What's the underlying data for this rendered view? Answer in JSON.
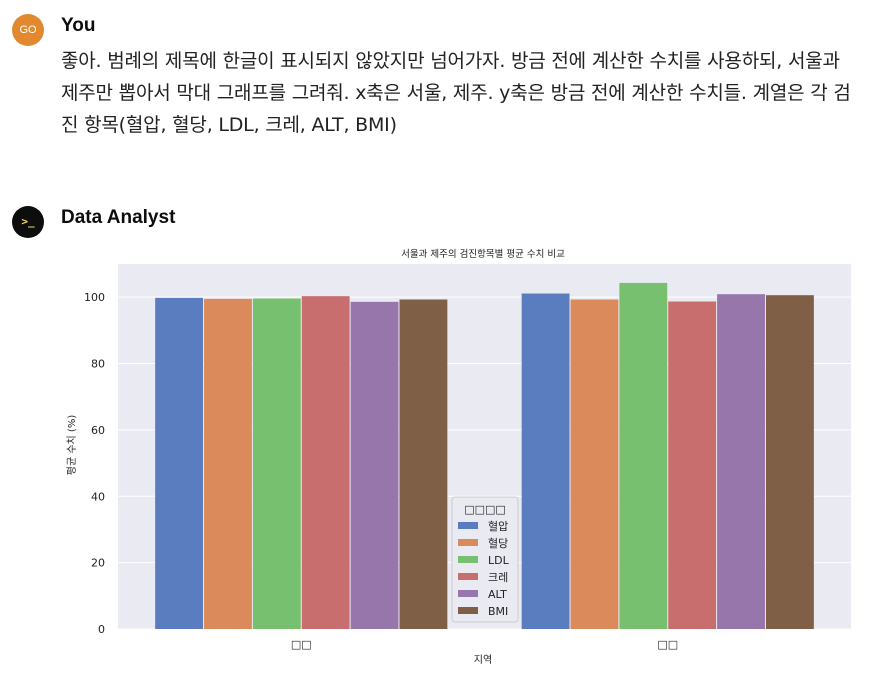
{
  "user_message": {
    "avatar_initials": "GO",
    "author": "You",
    "text": "좋아. 범례의 제목에 한글이 표시되지 않았지만 넘어가자. 방금 전에 계산한 수치를 사용하되, 서울과 제주만 뽑아서 막대 그래프를 그려줘. x축은 서울, 제주. y축은 방금 전에 계산한 수치들. 계열은 각 검진 항목(혈압, 혈당, LDL, 크레, ALT, BMI)"
  },
  "assistant_message": {
    "avatar_glyph": ">_",
    "author": "Data Analyst"
  },
  "chart_data": {
    "type": "bar",
    "title": "서울과 제주의 검진항목별 평균 수치 비교",
    "xlabel": "지역",
    "ylabel": "평균 수치 (%)",
    "categories": [
      "□□",
      "□□"
    ],
    "ylim": [
      0,
      110
    ],
    "yticks": [
      0,
      20,
      40,
      60,
      80,
      100
    ],
    "grid": true,
    "legend_title": "□□□□",
    "legend_position": "lower-right of first group",
    "series": [
      {
        "name": "혈압",
        "color": "#5a7dc0",
        "values": [
          99.8,
          101.1
        ]
      },
      {
        "name": "혈당",
        "color": "#db8a5c",
        "values": [
          99.5,
          99.3
        ]
      },
      {
        "name": "LDL",
        "color": "#77c070",
        "values": [
          99.6,
          104.3
        ]
      },
      {
        "name": "크레",
        "color": "#c86e6e",
        "values": [
          100.3,
          98.7
        ]
      },
      {
        "name": "ALT",
        "color": "#9676ab",
        "values": [
          98.6,
          100.9
        ]
      },
      {
        "name": "BMI",
        "color": "#7f5f45",
        "values": [
          99.3,
          100.6
        ]
      }
    ]
  }
}
